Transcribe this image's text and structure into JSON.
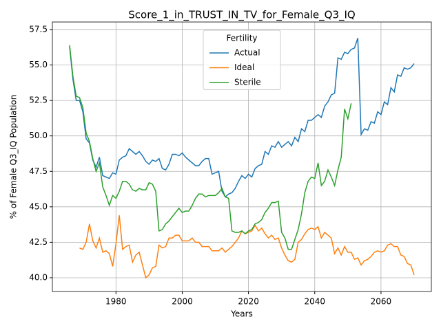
{
  "chart_data": {
    "type": "line",
    "title": "Score_1_in_TRUST_IN_TV_for_Female_Q3_IQ",
    "xlabel": "Years",
    "ylabel": "% of Female Q3_IQ Population",
    "legend_title": "Fertility",
    "legend_loc": "upper center",
    "grid": true,
    "xlim": [
      1960.8,
      2075.2
    ],
    "ylim": [
      39.03,
      58.03
    ],
    "xticks": [
      1980,
      2000,
      2020,
      2040,
      2060
    ],
    "yticks": [
      {
        "value": 40,
        "label": "40.0"
      },
      42.5,
      {
        "value": 45,
        "label": "45.0"
      },
      47.5,
      {
        "value": 50,
        "label": "50.0"
      },
      52.5,
      {
        "value": 55,
        "label": "55.0"
      },
      57.5
    ],
    "x": [
      1966,
      1967,
      1968,
      1969,
      1970,
      1971,
      1972,
      1973,
      1974,
      1975,
      1976,
      1977,
      1978,
      1979,
      1980,
      1981,
      1982,
      1983,
      1984,
      1985,
      1986,
      1987,
      1988,
      1989,
      1990,
      1991,
      1992,
      1993,
      1994,
      1995,
      1996,
      1997,
      1998,
      1999,
      2000,
      2001,
      2002,
      2003,
      2004,
      2005,
      2006,
      2007,
      2008,
      2009,
      2010,
      2011,
      2012,
      2013,
      2014,
      2015,
      2016,
      2017,
      2018,
      2019,
      2020,
      2021,
      2022,
      2023,
      2024,
      2025,
      2026,
      2027,
      2028,
      2029,
      2030,
      2031,
      2032,
      2033,
      2034,
      2035,
      2036,
      2037,
      2038,
      2039,
      2040,
      2041,
      2042,
      2043,
      2044,
      2045,
      2046,
      2047,
      2048,
      2049,
      2050,
      2051,
      2052,
      2053,
      2054,
      2055,
      2056,
      2057,
      2058,
      2059,
      2060,
      2061,
      2062,
      2063,
      2064,
      2065,
      2066,
      2067,
      2068,
      2069,
      2070
    ],
    "series": [
      {
        "name": "Actual",
        "color": "#1f77b4",
        "values": [
          56.3,
          54.0,
          52.5,
          52.5,
          51.7,
          49.8,
          49.5,
          48.3,
          47.8,
          48.5,
          47.2,
          47.1,
          47.0,
          47.4,
          47.3,
          48.3,
          48.5,
          48.6,
          49.1,
          48.9,
          48.7,
          48.9,
          48.6,
          48.2,
          48.0,
          48.3,
          48.2,
          48.4,
          47.7,
          47.6,
          48.0,
          48.7,
          48.7,
          48.6,
          48.8,
          48.5,
          48.3,
          48.1,
          47.9,
          47.9,
          48.2,
          48.4,
          48.4,
          47.3,
          47.4,
          47.5,
          46.1,
          45.7,
          45.9,
          46.0,
          46.3,
          46.8,
          47.2,
          47.0,
          47.3,
          47.1,
          47.7,
          47.9,
          48.0,
          48.9,
          48.7,
          49.3,
          49.2,
          49.6,
          49.2,
          49.4,
          49.6,
          49.3,
          49.9,
          49.6,
          50.5,
          50.3,
          51.1,
          51.1,
          51.3,
          51.5,
          51.3,
          52.1,
          52.4,
          52.9,
          53.0,
          55.5,
          55.4,
          55.9,
          55.8,
          56.1,
          56.2,
          56.9,
          50.1,
          50.5,
          50.4,
          51.0,
          50.9,
          51.7,
          51.5,
          52.4,
          52.2,
          53.4,
          53.1,
          54.3,
          54.2,
          54.8,
          54.7,
          54.8,
          55.1
        ]
      },
      {
        "name": "Ideal",
        "color": "#ff7f0e",
        "values": [
          null,
          null,
          null,
          42.1,
          42.0,
          42.5,
          43.8,
          42.6,
          42.1,
          42.8,
          41.8,
          41.9,
          41.7,
          40.8,
          42.4,
          44.4,
          42.0,
          42.2,
          42.3,
          41.1,
          41.6,
          41.8,
          40.9,
          40.0,
          40.2,
          40.7,
          40.8,
          42.3,
          42.1,
          42.2,
          42.8,
          42.8,
          43.0,
          43.0,
          42.6,
          42.6,
          42.6,
          42.8,
          42.5,
          42.5,
          42.2,
          42.2,
          42.2,
          41.9,
          41.9,
          41.9,
          42.1,
          41.8,
          42.0,
          42.2,
          42.5,
          42.8,
          43.3,
          43.1,
          43.2,
          43.3,
          43.7,
          43.3,
          43.5,
          43.1,
          42.8,
          43.0,
          42.7,
          42.8,
          42.1,
          41.6,
          41.2,
          41.1,
          41.3,
          42.5,
          42.7,
          43.1,
          43.4,
          43.5,
          43.4,
          43.6,
          42.8,
          43.2,
          43.0,
          42.8,
          41.7,
          42.1,
          41.6,
          42.2,
          41.8,
          41.8,
          41.3,
          41.4,
          40.9,
          41.2,
          41.3,
          41.5,
          41.8,
          41.9,
          41.8,
          41.9,
          42.3,
          42.4,
          42.2,
          42.2,
          41.6,
          41.5,
          41.0,
          40.9,
          40.2
        ]
      },
      {
        "name": "Sterile",
        "color": "#2ca02c",
        "values": [
          56.4,
          54.2,
          52.8,
          52.7,
          52.0,
          50.2,
          49.6,
          48.4,
          47.5,
          48.1,
          46.4,
          45.8,
          45.1,
          45.8,
          45.6,
          46.1,
          46.8,
          46.8,
          46.6,
          46.2,
          46.1,
          46.3,
          46.2,
          46.2,
          46.7,
          46.6,
          46.1,
          43.3,
          43.4,
          43.8,
          44.0,
          44.3,
          44.6,
          44.9,
          44.6,
          44.7,
          44.7,
          45.1,
          45.6,
          45.9,
          45.9,
          45.7,
          45.8,
          45.8,
          45.8,
          46.0,
          46.3,
          45.7,
          45.6,
          43.3,
          43.2,
          43.2,
          43.3,
          43.1,
          43.3,
          43.4,
          43.8,
          43.9,
          44.1,
          44.6,
          44.9,
          45.3,
          45.3,
          45.4,
          43.2,
          42.8,
          42.0,
          42.0,
          42.7,
          43.4,
          44.5,
          46.0,
          46.8,
          47.1,
          47.0,
          48.1,
          46.5,
          46.8,
          47.6,
          47.1,
          46.5,
          47.6,
          48.5,
          51.9,
          51.2,
          52.3,
          null,
          null,
          null,
          null,
          null,
          null,
          null,
          null,
          null,
          null,
          null,
          null,
          null,
          null,
          null,
          null,
          null,
          null,
          null
        ]
      }
    ]
  }
}
